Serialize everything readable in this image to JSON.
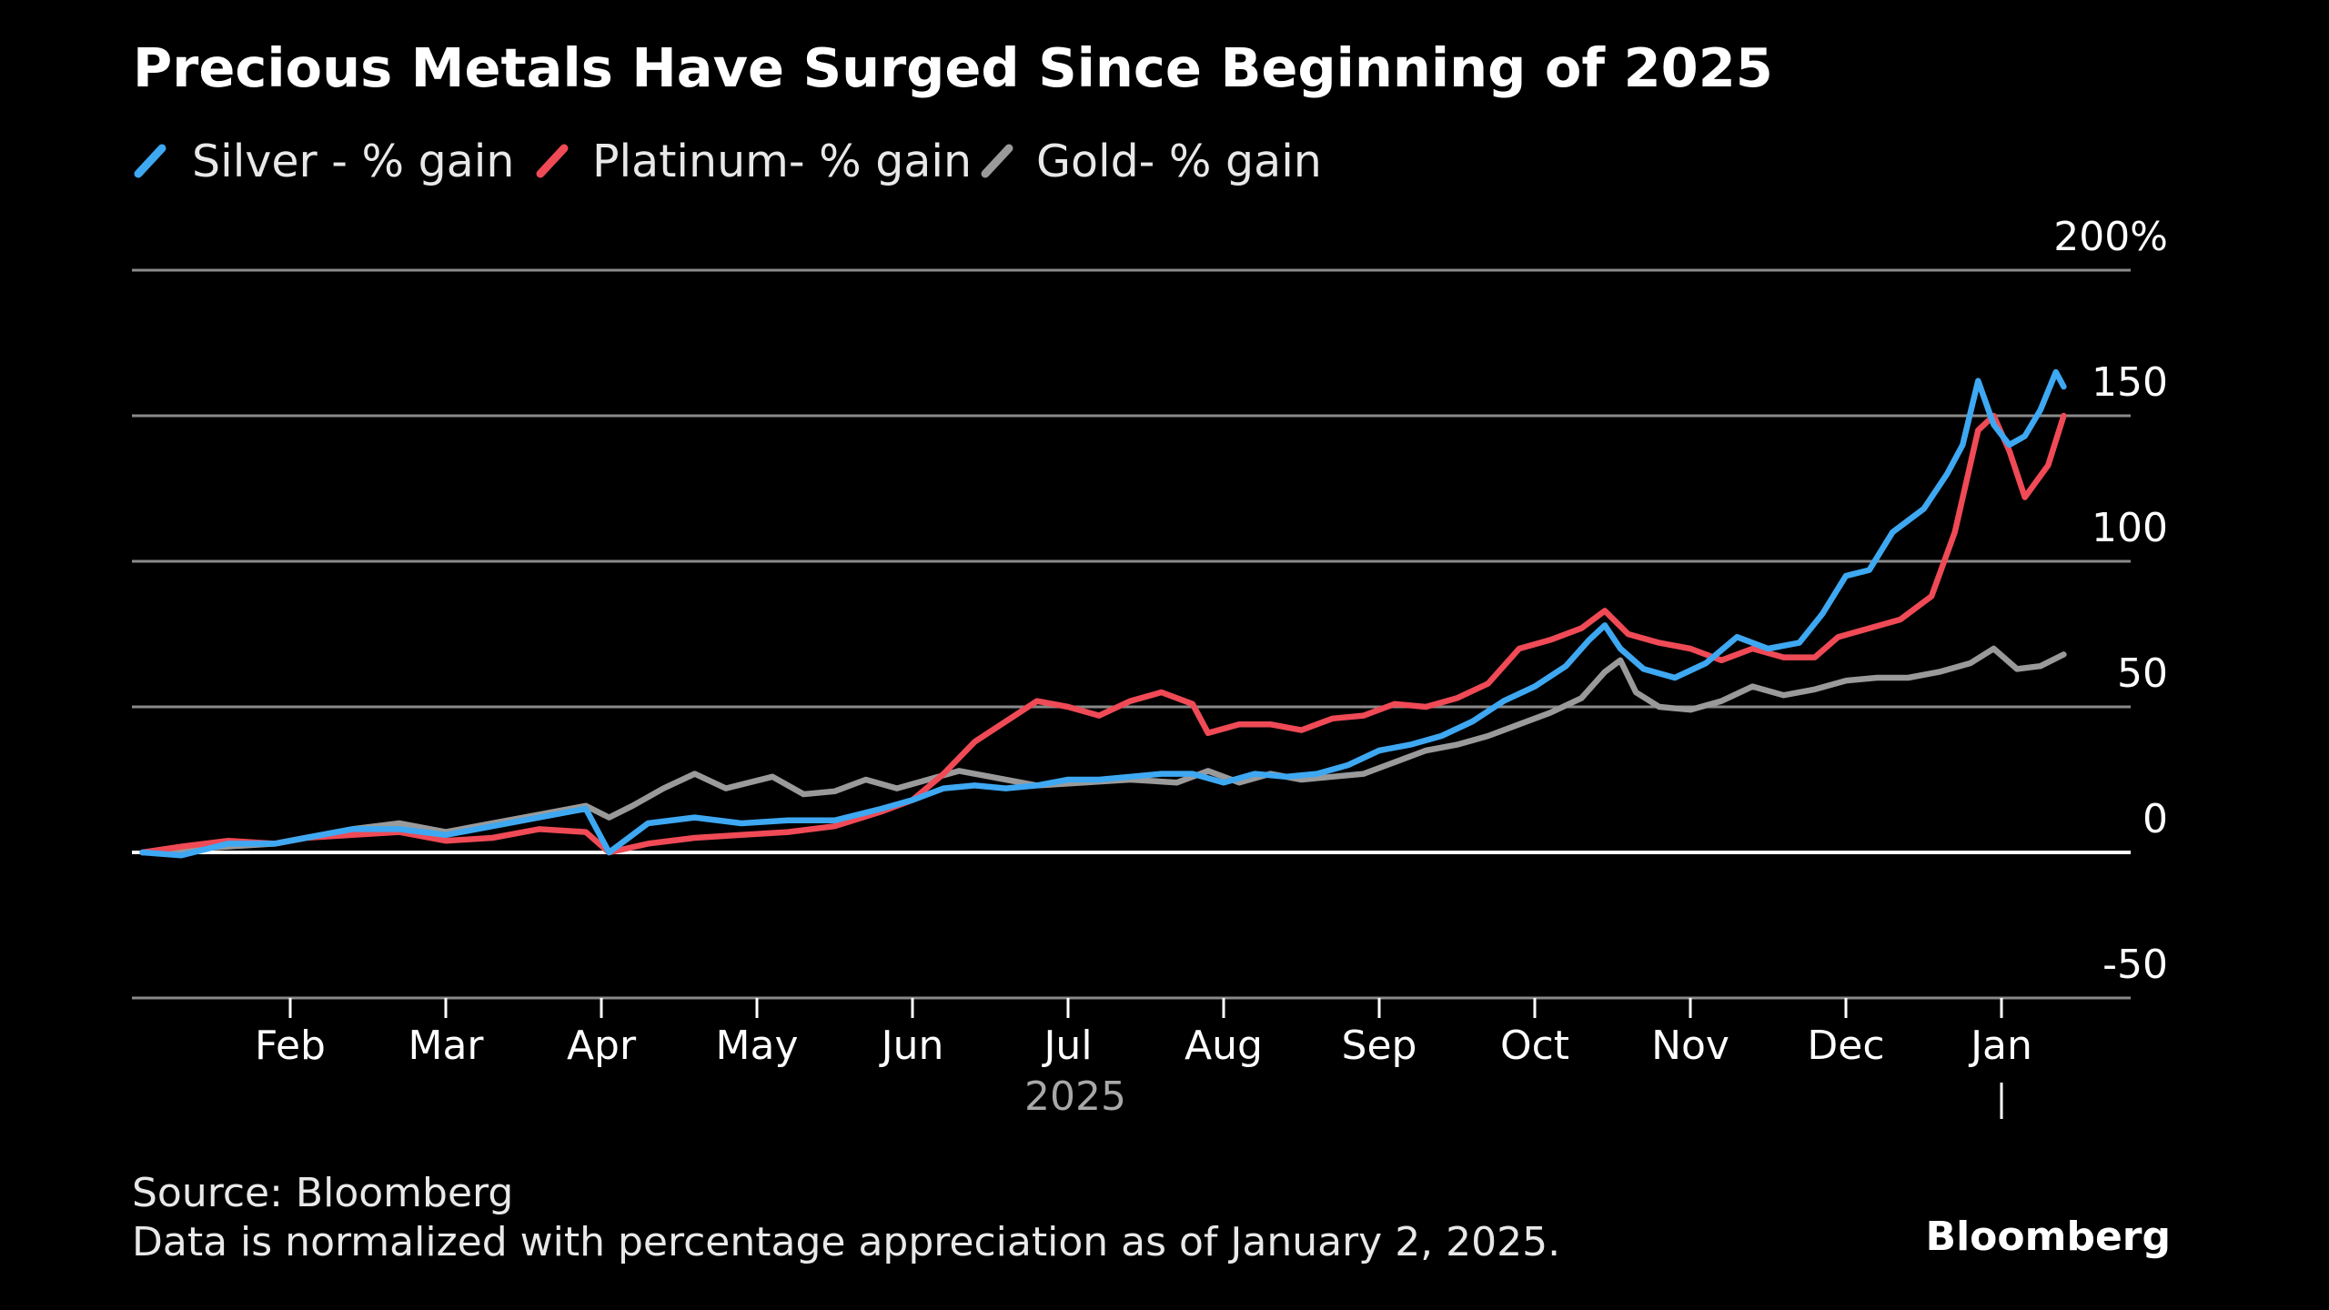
{
  "title": "Precious Metals Have Surged Since Beginning of 2025",
  "legend": [
    {
      "label": "Silver - % gain",
      "color": "#3ea8f2"
    },
    {
      "label": "Platinum- % gain",
      "color": "#ef4a56"
    },
    {
      "label": "Gold- % gain",
      "color": "#9a9a9a"
    }
  ],
  "footer": {
    "source": "Source: Bloomberg",
    "note": "Data is normalized with percentage appreciation as of January 2, 2025.",
    "brand": "Bloomberg"
  },
  "chart_data": {
    "type": "line",
    "title": "Precious Metals Have Surged Since Beginning of 2025",
    "x_unit": "months from Jan 1, 2025",
    "xlim": [
      0,
      12.85
    ],
    "ylim": [
      -50,
      200
    ],
    "y_ticks": [
      -50,
      0,
      50,
      100,
      150,
      200
    ],
    "y_tick_labels": [
      "-50",
      "0",
      "50",
      "100",
      "150",
      "200%"
    ],
    "x_ticks": [
      {
        "label": "Feb",
        "x": 1
      },
      {
        "label": "Mar",
        "x": 2
      },
      {
        "label": "Apr",
        "x": 3
      },
      {
        "label": "May",
        "x": 4
      },
      {
        "label": "Jun",
        "x": 5
      },
      {
        "label": "Jul",
        "x": 6
      },
      {
        "label": "Aug",
        "x": 7
      },
      {
        "label": "Sep",
        "x": 8
      },
      {
        "label": "Oct",
        "x": 9
      },
      {
        "label": "Nov",
        "x": 10
      },
      {
        "label": "Dec",
        "x": 11
      },
      {
        "label": "Jan",
        "x": 12
      }
    ],
    "x_year_label": "2025",
    "grid": true,
    "legend_position": "top-left",
    "series": [
      {
        "name": "Gold- % gain",
        "color": "#9a9a9a",
        "points": [
          [
            0.05,
            0
          ],
          [
            0.3,
            1
          ],
          [
            0.6,
            2
          ],
          [
            0.9,
            3
          ],
          [
            1.1,
            5
          ],
          [
            1.4,
            8
          ],
          [
            1.7,
            10
          ],
          [
            2.0,
            7
          ],
          [
            2.3,
            10
          ],
          [
            2.6,
            13
          ],
          [
            2.9,
            16
          ],
          [
            3.05,
            12
          ],
          [
            3.2,
            16
          ],
          [
            3.4,
            22
          ],
          [
            3.6,
            27
          ],
          [
            3.8,
            22
          ],
          [
            4.1,
            26
          ],
          [
            4.3,
            20
          ],
          [
            4.5,
            21
          ],
          [
            4.7,
            25
          ],
          [
            4.9,
            22
          ],
          [
            5.1,
            25
          ],
          [
            5.3,
            28
          ],
          [
            5.5,
            26
          ],
          [
            5.8,
            23
          ],
          [
            6.1,
            24
          ],
          [
            6.4,
            25
          ],
          [
            6.7,
            24
          ],
          [
            6.9,
            28
          ],
          [
            7.1,
            24
          ],
          [
            7.3,
            27
          ],
          [
            7.5,
            25
          ],
          [
            7.7,
            26
          ],
          [
            7.9,
            27
          ],
          [
            8.1,
            31
          ],
          [
            8.3,
            35
          ],
          [
            8.5,
            37
          ],
          [
            8.7,
            40
          ],
          [
            8.9,
            44
          ],
          [
            9.1,
            48
          ],
          [
            9.3,
            53
          ],
          [
            9.45,
            62
          ],
          [
            9.55,
            66
          ],
          [
            9.65,
            55
          ],
          [
            9.8,
            50
          ],
          [
            10.0,
            49
          ],
          [
            10.2,
            52
          ],
          [
            10.4,
            57
          ],
          [
            10.6,
            54
          ],
          [
            10.8,
            56
          ],
          [
            11.0,
            59
          ],
          [
            11.2,
            60
          ],
          [
            11.4,
            60
          ],
          [
            11.6,
            62
          ],
          [
            11.8,
            65
          ],
          [
            11.95,
            70
          ],
          [
            12.1,
            63
          ],
          [
            12.25,
            64
          ],
          [
            12.4,
            68
          ]
        ]
      },
      {
        "name": "Platinum- % gain",
        "color": "#ef4a56",
        "points": [
          [
            0.05,
            0
          ],
          [
            0.3,
            2
          ],
          [
            0.6,
            4
          ],
          [
            0.9,
            3
          ],
          [
            1.1,
            5
          ],
          [
            1.4,
            6
          ],
          [
            1.7,
            7
          ],
          [
            2.0,
            4
          ],
          [
            2.3,
            5
          ],
          [
            2.6,
            8
          ],
          [
            2.9,
            7
          ],
          [
            3.05,
            0
          ],
          [
            3.3,
            3
          ],
          [
            3.6,
            5
          ],
          [
            3.9,
            6
          ],
          [
            4.2,
            7
          ],
          [
            4.5,
            9
          ],
          [
            4.8,
            14
          ],
          [
            5.0,
            18
          ],
          [
            5.2,
            27
          ],
          [
            5.4,
            38
          ],
          [
            5.6,
            45
          ],
          [
            5.8,
            52
          ],
          [
            6.0,
            50
          ],
          [
            6.2,
            47
          ],
          [
            6.4,
            52
          ],
          [
            6.6,
            55
          ],
          [
            6.8,
            51
          ],
          [
            6.9,
            41
          ],
          [
            7.1,
            44
          ],
          [
            7.3,
            44
          ],
          [
            7.5,
            42
          ],
          [
            7.7,
            46
          ],
          [
            7.9,
            47
          ],
          [
            8.1,
            51
          ],
          [
            8.3,
            50
          ],
          [
            8.5,
            53
          ],
          [
            8.7,
            58
          ],
          [
            8.9,
            70
          ],
          [
            9.1,
            73
          ],
          [
            9.3,
            77
          ],
          [
            9.45,
            83
          ],
          [
            9.6,
            75
          ],
          [
            9.8,
            72
          ],
          [
            10.0,
            70
          ],
          [
            10.2,
            66
          ],
          [
            10.4,
            70
          ],
          [
            10.6,
            67
          ],
          [
            10.8,
            67
          ],
          [
            10.95,
            74
          ],
          [
            11.15,
            77
          ],
          [
            11.35,
            80
          ],
          [
            11.55,
            88
          ],
          [
            11.7,
            110
          ],
          [
            11.85,
            145
          ],
          [
            11.95,
            150
          ],
          [
            12.05,
            138
          ],
          [
            12.15,
            122
          ],
          [
            12.3,
            133
          ],
          [
            12.4,
            150
          ]
        ]
      },
      {
        "name": "Silver - % gain",
        "color": "#3ea8f2",
        "points": [
          [
            0.05,
            0
          ],
          [
            0.3,
            -1
          ],
          [
            0.6,
            3
          ],
          [
            0.9,
            3
          ],
          [
            1.1,
            5
          ],
          [
            1.4,
            8
          ],
          [
            1.7,
            8
          ],
          [
            2.0,
            6
          ],
          [
            2.3,
            9
          ],
          [
            2.6,
            12
          ],
          [
            2.9,
            15
          ],
          [
            3.05,
            0
          ],
          [
            3.3,
            10
          ],
          [
            3.6,
            12
          ],
          [
            3.9,
            10
          ],
          [
            4.2,
            11
          ],
          [
            4.5,
            11
          ],
          [
            4.8,
            15
          ],
          [
            5.0,
            18
          ],
          [
            5.2,
            22
          ],
          [
            5.4,
            23
          ],
          [
            5.6,
            22
          ],
          [
            5.8,
            23
          ],
          [
            6.0,
            25
          ],
          [
            6.2,
            25
          ],
          [
            6.4,
            26
          ],
          [
            6.6,
            27
          ],
          [
            6.8,
            27
          ],
          [
            7.0,
            24
          ],
          [
            7.2,
            27
          ],
          [
            7.4,
            26
          ],
          [
            7.6,
            27
          ],
          [
            7.8,
            30
          ],
          [
            8.0,
            35
          ],
          [
            8.2,
            37
          ],
          [
            8.4,
            40
          ],
          [
            8.6,
            45
          ],
          [
            8.8,
            52
          ],
          [
            9.0,
            57
          ],
          [
            9.2,
            64
          ],
          [
            9.35,
            73
          ],
          [
            9.45,
            78
          ],
          [
            9.55,
            70
          ],
          [
            9.7,
            63
          ],
          [
            9.9,
            60
          ],
          [
            10.1,
            65
          ],
          [
            10.3,
            74
          ],
          [
            10.5,
            70
          ],
          [
            10.7,
            72
          ],
          [
            10.85,
            82
          ],
          [
            11.0,
            95
          ],
          [
            11.15,
            97
          ],
          [
            11.3,
            110
          ],
          [
            11.5,
            118
          ],
          [
            11.65,
            130
          ],
          [
            11.75,
            140
          ],
          [
            11.85,
            162
          ],
          [
            11.95,
            147
          ],
          [
            12.05,
            140
          ],
          [
            12.15,
            143
          ],
          [
            12.25,
            152
          ],
          [
            12.35,
            165
          ],
          [
            12.4,
            160
          ]
        ]
      }
    ]
  }
}
